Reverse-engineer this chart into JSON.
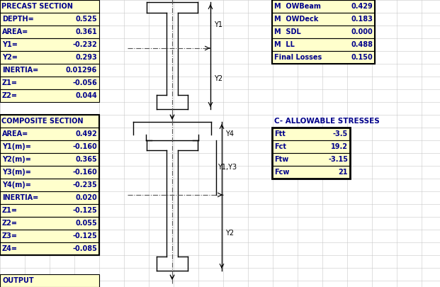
{
  "bg_color": "#ffffff",
  "grid_color": "#c8c8c8",
  "cell_yellow": "#ffffcc",
  "text_dark": "#00008B",
  "text_black": "#000000",
  "precast_title": "PRECAST SECTION",
  "precast_labels": [
    "DEPTH=",
    "AREA=",
    "Y1=",
    "Y2=",
    "INERTIA=",
    "Z1=",
    "Z2="
  ],
  "precast_values": [
    "0.525",
    "0.361",
    "-0.232",
    "0.293",
    "0.01296",
    "-0.056",
    "0.044"
  ],
  "composite_title": "COMPOSITE SECTION",
  "composite_labels": [
    "AREA=",
    "Y1(m)=",
    "Y2(m)=",
    "Y3(m)=",
    "Y4(m)=",
    "INERTIA=",
    "Z1=",
    "Z2=",
    "Z3=",
    "Z4="
  ],
  "composite_values": [
    "0.492",
    "-0.160",
    "0.365",
    "-0.160",
    "-0.235",
    "0.020",
    "-0.125",
    "0.055",
    "-0.125",
    "-0.085"
  ],
  "right_top_labels": [
    "M  OWBeam",
    "M  OWDeck",
    "M  SDL",
    "M  LL",
    "Final Losses"
  ],
  "right_top_values": [
    "0.429",
    "0.183",
    "0.000",
    "0.488",
    "0.150"
  ],
  "allowable_title": "C- ALLOWABLE STRESSES",
  "allowable_labels": [
    "Ftt",
    "Fct",
    "Ftw",
    "Fcw"
  ],
  "allowable_values": [
    "-3.5",
    "19.2",
    "-3.15",
    "21"
  ],
  "output_label": "OUTPUT"
}
